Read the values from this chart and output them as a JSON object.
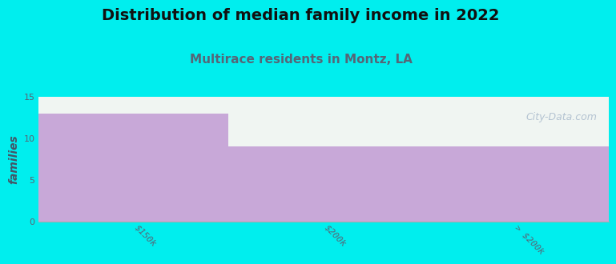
{
  "title": "Distribution of median family income in 2022",
  "subtitle": "Multirace residents in Montz, LA",
  "categories": [
    "$150k",
    "$200k",
    "> $200k"
  ],
  "values": [
    13,
    9,
    9
  ],
  "bar_color": "#c8a8d8",
  "bar_edgecolor": "#c8a8d8",
  "background_color": "#00eeee",
  "plot_bg_color": "#f0f5f2",
  "ylabel": "families",
  "ylim": [
    0,
    15
  ],
  "yticks": [
    0,
    5,
    10,
    15
  ],
  "title_fontsize": 14,
  "subtitle_fontsize": 11,
  "subtitle_color": "#556677",
  "ylabel_color": "#445566",
  "tick_color": "#556677",
  "watermark_text": "City-Data.com",
  "watermark_color": "#aabbcc",
  "spine_color": "#aaaaaa"
}
